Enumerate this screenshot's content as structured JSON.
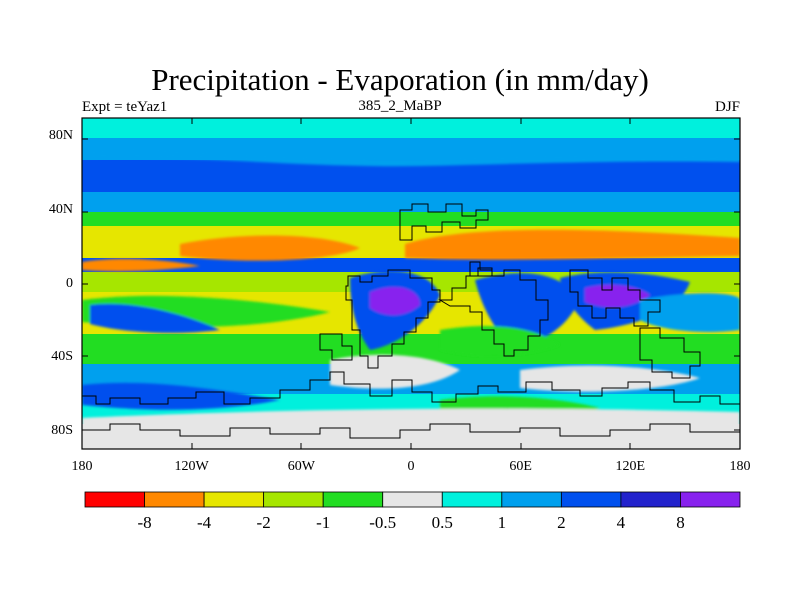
{
  "map": {
    "title": "Precipitation - Evaporation (in mm/day)",
    "experiment_label": "Expt = teYaz1",
    "run_label": "385_2_MaBP",
    "season_label": "DJF",
    "lat_ticks": [
      {
        "lat": 80,
        "label": "80N"
      },
      {
        "lat": 40,
        "label": "40N"
      },
      {
        "lat": 0,
        "label": "0"
      },
      {
        "lat": -40,
        "label": "40S"
      },
      {
        "lat": -80,
        "label": "80S"
      }
    ],
    "lon_ticks": [
      {
        "lon": -180,
        "label": "180"
      },
      {
        "lon": -120,
        "label": "120W"
      },
      {
        "lon": -60,
        "label": "60W"
      },
      {
        "lon": 0,
        "label": "0"
      },
      {
        "lon": 60,
        "label": "60E"
      },
      {
        "lon": 120,
        "label": "120E"
      },
      {
        "lon": 180,
        "label": "180"
      }
    ]
  },
  "colorbar": {
    "colors": [
      "#ff0000",
      "#ff8800",
      "#e6e600",
      "#a6e600",
      "#22dd22",
      "#e6e6e6",
      "#00f0dd",
      "#00a0ee",
      "#0050ee",
      "#2222cc",
      "#8822ee"
    ],
    "labels": [
      "-8",
      "-4",
      "-2",
      "-1",
      "-0.5",
      "0.5",
      "1",
      "2",
      "4",
      "8"
    ]
  },
  "chart_data": {
    "type": "heatmap",
    "variable": "Precipitation - Evaporation",
    "units": "mm/day",
    "season": "DJF",
    "lon_range": [
      -180,
      180
    ],
    "lat_range": [
      -90,
      90
    ],
    "levels": [
      -8,
      -4,
      -2,
      -1,
      -0.5,
      0.5,
      1,
      2,
      4,
      8
    ],
    "bands": [
      {
        "lat_range": [
          80,
          90
        ],
        "value_range": "0.5 to 1"
      },
      {
        "lat_range": [
          70,
          80
        ],
        "value_range": "1 to 2"
      },
      {
        "lat_range": [
          52,
          65
        ],
        "value_range": "2 to 4"
      },
      {
        "lat_range": [
          15,
          35
        ],
        "value_range": "-4 to -8 over subtropics"
      },
      {
        "lat_range": [
          0,
          10
        ],
        "value_range": "4 to 8 ITCZ"
      },
      {
        "lat_range": [
          -25,
          -5
        ],
        "value_range": "-2 to -4 subtropical oceans"
      },
      {
        "lat_range": [
          -65,
          -45
        ],
        "value_range": "1 to 4 storm track"
      },
      {
        "lat_range": [
          -90,
          -70
        ],
        "value_range": "-0.5 to 0.5 Antarctica"
      }
    ]
  }
}
